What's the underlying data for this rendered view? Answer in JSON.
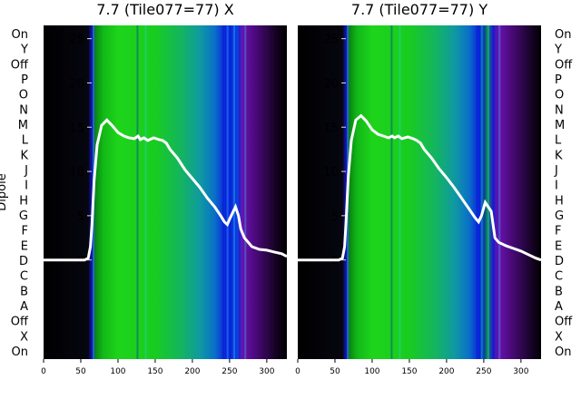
{
  "chart_data": [
    {
      "type": "heatmap",
      "title": "7.7 (Tile077=77) X",
      "ylabel": "Dipole",
      "x_ticks": [
        "0",
        "50",
        "100",
        "150",
        "200",
        "250",
        "300"
      ],
      "xlim": [
        0,
        327
      ],
      "y_tick_labels": [
        "On",
        "Y",
        "Off",
        "P",
        "O",
        "N",
        "M",
        "L",
        "K",
        "J",
        "I",
        "H",
        "G",
        "F",
        "E",
        "D",
        "C",
        "B",
        "A",
        "Off",
        "X",
        "On"
      ],
      "overlay_ticks": [
        "25",
        "20",
        "15",
        "10",
        "5",
        "0"
      ],
      "overlay_ylim": [
        -11.2,
        26.5
      ],
      "colormap": [
        "black",
        "blue",
        "green",
        "teal",
        "blue",
        "purple"
      ],
      "band_stops": [
        {
          "x": 0,
          "color": "#000000"
        },
        {
          "x": 60,
          "color": "#060610"
        },
        {
          "x": 66,
          "color": "#1a1ad0"
        },
        {
          "x": 70,
          "color": "#0a8a10"
        },
        {
          "x": 80,
          "color": "#12b818"
        },
        {
          "x": 100,
          "color": "#1ed41a"
        },
        {
          "x": 150,
          "color": "#18cc20"
        },
        {
          "x": 185,
          "color": "#14b460"
        },
        {
          "x": 210,
          "color": "#0f9aa0"
        },
        {
          "x": 230,
          "color": "#0a70c8"
        },
        {
          "x": 245,
          "color": "#0a20e0"
        },
        {
          "x": 260,
          "color": "#0a40e0"
        },
        {
          "x": 268,
          "color": "#6a10b0"
        },
        {
          "x": 290,
          "color": "#40086a"
        },
        {
          "x": 315,
          "color": "#10021a"
        },
        {
          "x": 327,
          "color": "#000000"
        }
      ],
      "series": [
        {
          "x": [
            0,
            55,
            60,
            63,
            65,
            68,
            72,
            78,
            85,
            92,
            100,
            108,
            115,
            122,
            127,
            130,
            135,
            140,
            148,
            155,
            160,
            165,
            170,
            180,
            190,
            200,
            210,
            220,
            230,
            238,
            243,
            247,
            250,
            255,
            258,
            262,
            265,
            270,
            275,
            280,
            290,
            300,
            310,
            320,
            327
          ],
          "values": [
            0,
            0,
            0.2,
            1.5,
            4,
            9,
            13,
            15.2,
            15.8,
            15.2,
            14.4,
            14,
            13.8,
            13.7,
            14,
            13.6,
            13.8,
            13.5,
            13.8,
            13.6,
            13.5,
            13.2,
            12.5,
            11.5,
            10.2,
            9.2,
            8.2,
            7,
            6,
            5,
            4.3,
            4,
            4.6,
            5.5,
            6,
            5,
            3.5,
            2.5,
            2,
            1.5,
            1.2,
            1.1,
            0.9,
            0.7,
            0.4
          ]
        }
      ]
    },
    {
      "type": "heatmap",
      "title": "7.7 (Tile077=77) Y",
      "x_ticks": [
        "0",
        "50",
        "100",
        "150",
        "200",
        "250",
        "300"
      ],
      "xlim": [
        0,
        327
      ],
      "y_tick_labels": [
        "On",
        "Y",
        "Off",
        "P",
        "O",
        "N",
        "M",
        "L",
        "K",
        "J",
        "I",
        "H",
        "G",
        "F",
        "E",
        "D",
        "C",
        "B",
        "A",
        "Off",
        "X",
        "On"
      ],
      "overlay_ticks": [
        "25",
        "20",
        "15",
        "10",
        "5",
        "0"
      ],
      "overlay_ylim": [
        -11.2,
        26.5
      ],
      "colormap": [
        "black",
        "blue",
        "green",
        "teal",
        "blue",
        "purple"
      ],
      "band_stops": [
        {
          "x": 0,
          "color": "#000000"
        },
        {
          "x": 60,
          "color": "#060610"
        },
        {
          "x": 66,
          "color": "#1a1ad0"
        },
        {
          "x": 70,
          "color": "#0a8a10"
        },
        {
          "x": 80,
          "color": "#12b818"
        },
        {
          "x": 100,
          "color": "#1ed41a"
        },
        {
          "x": 150,
          "color": "#18cc20"
        },
        {
          "x": 185,
          "color": "#14b460"
        },
        {
          "x": 210,
          "color": "#0f9aa0"
        },
        {
          "x": 230,
          "color": "#0a70c8"
        },
        {
          "x": 245,
          "color": "#0a20e0"
        },
        {
          "x": 255,
          "color": "#0a8a50"
        },
        {
          "x": 262,
          "color": "#2020d0"
        },
        {
          "x": 270,
          "color": "#6a10b0"
        },
        {
          "x": 295,
          "color": "#3a0860"
        },
        {
          "x": 327,
          "color": "#000000"
        }
      ],
      "series": [
        {
          "x": [
            0,
            55,
            60,
            63,
            65,
            68,
            72,
            78,
            85,
            92,
            100,
            108,
            115,
            122,
            127,
            130,
            135,
            140,
            148,
            155,
            160,
            165,
            170,
            180,
            190,
            200,
            210,
            220,
            230,
            238,
            243,
            247,
            252,
            256,
            260,
            265,
            270,
            280,
            290,
            300,
            310,
            320,
            327
          ],
          "values": [
            0,
            0,
            0.2,
            1.5,
            4.5,
            9.5,
            13.5,
            15.8,
            16.3,
            15.7,
            14.7,
            14.2,
            14,
            13.8,
            14,
            13.8,
            14,
            13.7,
            13.9,
            13.7,
            13.5,
            13.2,
            12.5,
            11.5,
            10.3,
            9.3,
            8.2,
            7,
            5.8,
            4.8,
            4.3,
            5,
            6.5,
            6,
            5.5,
            2.5,
            2,
            1.6,
            1.3,
            1,
            0.6,
            0.2,
            0
          ]
        }
      ]
    }
  ]
}
